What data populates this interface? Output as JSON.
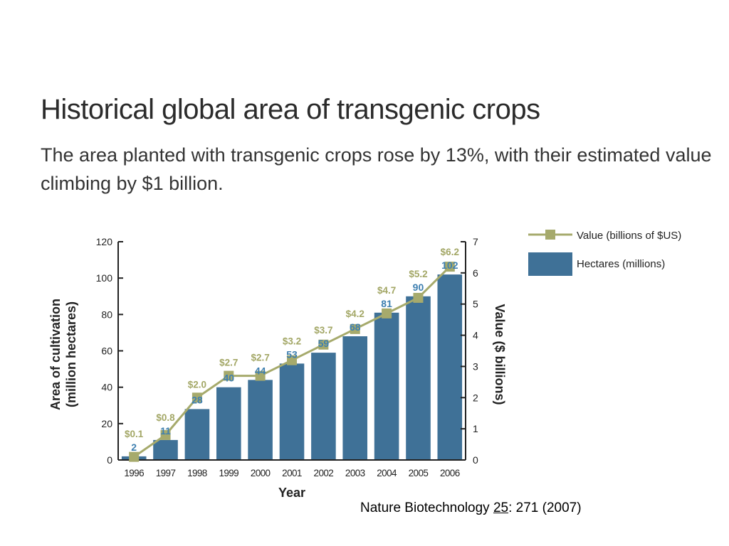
{
  "chart_data": {
    "type": "bar",
    "title": "Historical global area of transgenic crops",
    "subtitle": "The area planted with transgenic crops rose by 13%, with their estimated value climbing by $1 billion.",
    "categories": [
      "1996",
      "1997",
      "1998",
      "1999",
      "2000",
      "2001",
      "2002",
      "2003",
      "2004",
      "2005",
      "2006"
    ],
    "series": [
      {
        "name": "Hectares (millions)",
        "kind": "bar",
        "axis": "left",
        "color": "#3f7197",
        "values": [
          2,
          11,
          28,
          40,
          44,
          53,
          59,
          68,
          81,
          90,
          102
        ],
        "labels": [
          "2",
          "11",
          "28",
          "40",
          "44",
          "53",
          "59",
          "68",
          "81",
          "90",
          "102"
        ]
      },
      {
        "name": "Value (billions of $US)",
        "kind": "line",
        "axis": "right",
        "color": "#a6aa6c",
        "values": [
          0.1,
          0.8,
          2.0,
          2.7,
          2.7,
          3.2,
          3.7,
          4.2,
          4.7,
          5.2,
          6.2
        ],
        "labels": [
          "$0.1",
          "$0.8",
          "$2.0",
          "$2.7",
          "$2.7",
          "$3.2",
          "$3.7",
          "$4.2",
          "$4.7",
          "$5.2",
          "$6.2"
        ]
      }
    ],
    "xlabel": "Year",
    "ylabel": "Area of cultivation (million hectares)",
    "y2label": "Value ($ billions)",
    "ylim": [
      0,
      120
    ],
    "y2lim": [
      0,
      7
    ],
    "yticks": [
      0,
      20,
      40,
      60,
      80,
      100,
      120
    ],
    "y2ticks": [
      0,
      1,
      2,
      3,
      4,
      5,
      6,
      7
    ],
    "legend_position": "top-right",
    "grid": false
  },
  "citation": {
    "journal": "Nature Biotechnology ",
    "volume": "25",
    "rest": ": 271 (2007)"
  }
}
